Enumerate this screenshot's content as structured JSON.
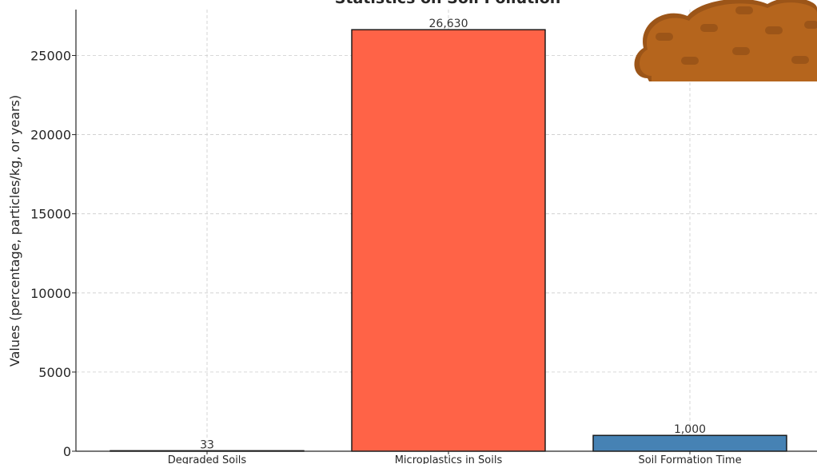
{
  "chart_data": {
    "type": "bar",
    "title": "Statistics on Soil Pollution",
    "xlabel": "",
    "ylabel": "Values (percentage, particles/kg, or years)",
    "categories": [
      "Degraded Soils",
      "Microplastics in Soils",
      "Soil Formation Time"
    ],
    "values": [
      33,
      26630,
      1000
    ],
    "data_labels": [
      "33",
      "26,630",
      "1,000"
    ],
    "colors": [
      "#8b4513",
      "#ff6347",
      "#4682b4"
    ],
    "yticks": [
      0,
      5000,
      10000,
      15000,
      20000,
      25000
    ],
    "ylim": [
      0,
      27900
    ],
    "grid": true,
    "legend": "none",
    "decoration": {
      "icon": "soil-mound-icon",
      "color": "#b5651d",
      "shadow_color": "#9c5518"
    }
  }
}
